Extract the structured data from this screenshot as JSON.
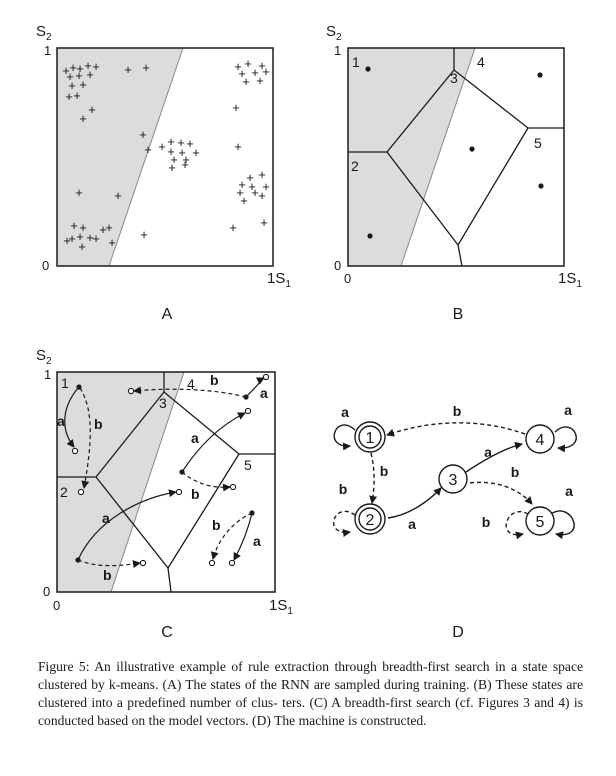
{
  "axes": {
    "s1": "S",
    "s1_sub": "1",
    "s2": "S",
    "s2_sub": "2",
    "zero": "0",
    "one": "1"
  },
  "panels": [
    {
      "label": "A"
    },
    {
      "label": "B",
      "cluster_ids": [
        "1",
        "2",
        "3",
        "4",
        "5"
      ]
    },
    {
      "label": "C",
      "cluster_ids": [
        "1",
        "2",
        "3",
        "4",
        "5"
      ],
      "symbols": [
        "a",
        "b"
      ]
    },
    {
      "label": "D",
      "states": [
        "1",
        "2",
        "3",
        "4",
        "5"
      ],
      "symbols": [
        "a",
        "b"
      ]
    }
  ],
  "caption": {
    "figure_label": "Figure 5:",
    "lines": [
      "An illustrative example of rule extraction through breadth-first search",
      "in a state space clustered by k-means. (A) The states of the RNN are sampled",
      "during training. (B) These states are clustered into a predefined number of clus-",
      "ters. (C) A breadth-first search (cf. Figures 3 and 4) is conducted based on the",
      "model vectors. (D) The machine is constructed."
    ]
  }
}
